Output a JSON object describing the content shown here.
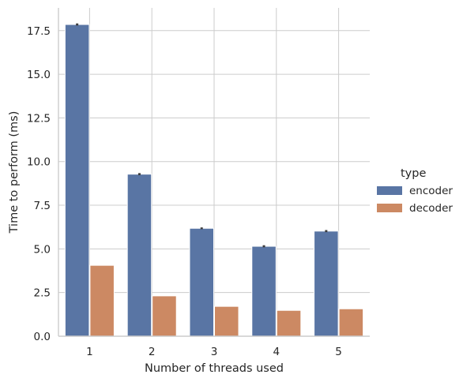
{
  "chart_data": {
    "type": "bar",
    "categories": [
      "1",
      "2",
      "3",
      "4",
      "5"
    ],
    "series": [
      {
        "name": "encoder",
        "values": [
          17.85,
          9.28,
          6.18,
          5.15,
          6.02
        ],
        "ci": [
          0.06,
          0.06,
          0.05,
          0.06,
          0.06
        ],
        "color": "#5975a4"
      },
      {
        "name": "decoder",
        "values": [
          4.06,
          2.31,
          1.71,
          1.48,
          1.57
        ],
        "ci": [
          0.0,
          0.0,
          0.0,
          0.0,
          0.0
        ],
        "color": "#cc8963"
      }
    ],
    "xlabel": "Number of threads used",
    "ylabel": "Time to perform (ms)",
    "ylim": [
      0,
      18.8
    ],
    "yticks": [
      0.0,
      2.5,
      5.0,
      7.5,
      10.0,
      12.5,
      15.0,
      17.5
    ],
    "ytick_labels": [
      "0.0",
      "2.5",
      "5.0",
      "7.5",
      "10.0",
      "12.5",
      "15.0",
      "17.5"
    ],
    "legend": {
      "title": "type",
      "placement": "right"
    },
    "grid": true
  }
}
